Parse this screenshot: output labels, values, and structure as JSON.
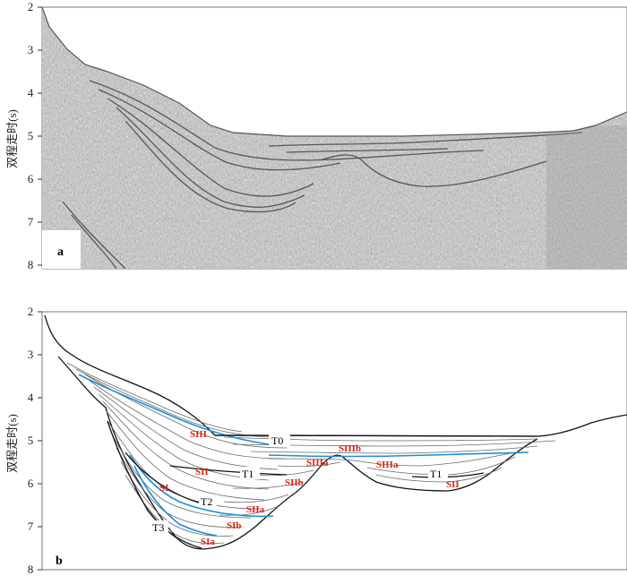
{
  "axes": {
    "ylabel": "双程走时(s)",
    "ticks": [
      "2",
      "3",
      "4",
      "5",
      "6",
      "7",
      "8"
    ]
  },
  "panels": {
    "a": {
      "label": "a"
    },
    "b": {
      "label": "b"
    }
  },
  "horizons": [
    "T0",
    "T1",
    "T1",
    "T2",
    "T3"
  ],
  "units": [
    "SIII",
    "SIIIb",
    "SIIIa",
    "SIIIa",
    "SII",
    "SIIb",
    "SII",
    "SI",
    "SIIa",
    "SIb",
    "SIa"
  ],
  "colors": {
    "blue_horizon": "#1e8fd6",
    "unit_label": "#e02010",
    "line": "#111111"
  }
}
